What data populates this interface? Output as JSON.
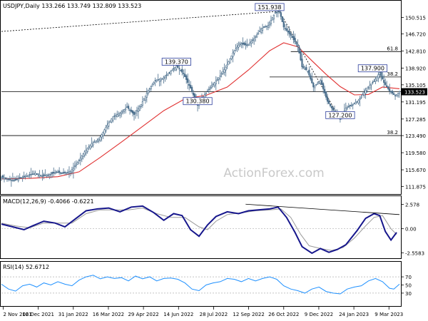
{
  "chart_data": [
    {
      "type": "candlestick",
      "title": "USDJPY,Daily  133.266 133.749 132.809 133.523",
      "yticks": [
        "150.515",
        "146.720",
        "142.810",
        "138.920",
        "135.105",
        "131.195",
        "127.285",
        "123.490",
        "119.580",
        "115.670",
        "111.875"
      ],
      "xticks": [
        "2 Nov 2021",
        "16 Dec 2021",
        "31 Jan 2022",
        "16 Mar 2022",
        "29 Apr 2022",
        "14 Jun 2022",
        "28 Jul 2022",
        "12 Sep 2022",
        "26 Oct 2022",
        "9 Dec 2022",
        "24 Jan 2023",
        "9 Mar 2023"
      ],
      "ylim": [
        110.3,
        154.0
      ],
      "last_price": "133.523",
      "price_path": [
        [
          0,
          114.0
        ],
        [
          4,
          113.6
        ],
        [
          9,
          113.2
        ],
        [
          14,
          113.8
        ],
        [
          19,
          114.4
        ],
        [
          24,
          114.9
        ],
        [
          29,
          114.2
        ],
        [
          34,
          114.6
        ],
        [
          39,
          115.1
        ],
        [
          44,
          114.9
        ],
        [
          49,
          115.3
        ],
        [
          54,
          117.4
        ],
        [
          59,
          119.8
        ],
        [
          64,
          121.7
        ],
        [
          69,
          122.6
        ],
        [
          74,
          125.4
        ],
        [
          79,
          127.8
        ],
        [
          84,
          128.6
        ],
        [
          89,
          130.0
        ],
        [
          94,
          128.3
        ],
        [
          99,
          130.6
        ],
        [
          104,
          133.8
        ],
        [
          109,
          136.1
        ],
        [
          114,
          136.5
        ],
        [
          119,
          137.8
        ],
        [
          124,
          139.4
        ],
        [
          129,
          137.6
        ],
        [
          134,
          134.3
        ],
        [
          139,
          130.4
        ],
        [
          144,
          132.9
        ],
        [
          149,
          134.9
        ],
        [
          154,
          136.7
        ],
        [
          159,
          139.1
        ],
        [
          164,
          142.4
        ],
        [
          169,
          144.6
        ],
        [
          174,
          144.1
        ],
        [
          179,
          145.6
        ],
        [
          184,
          147.9
        ],
        [
          189,
          148.7
        ],
        [
          194,
          151.6
        ],
        [
          197,
          151.9
        ],
        [
          200,
          148.3
        ],
        [
          205,
          146.4
        ],
        [
          210,
          143.9
        ],
        [
          213,
          139.2
        ],
        [
          217,
          138.2
        ],
        [
          221,
          134.6
        ],
        [
          226,
          136.1
        ],
        [
          231,
          131.3
        ],
        [
          236,
          128.8
        ],
        [
          240,
          127.2
        ],
        [
          244,
          129.8
        ],
        [
          249,
          130.6
        ],
        [
          254,
          131.8
        ],
        [
          259,
          134.4
        ],
        [
          264,
          135.9
        ],
        [
          268,
          137.9
        ],
        [
          271,
          135.6
        ],
        [
          275,
          133.7
        ],
        [
          279,
          132.6
        ],
        [
          282,
          133.5
        ]
      ],
      "ma_path": [
        [
          0,
          113.6
        ],
        [
          20,
          113.7
        ],
        [
          40,
          114.1
        ],
        [
          55,
          115.2
        ],
        [
          70,
          118.5
        ],
        [
          85,
          122.0
        ],
        [
          100,
          125.6
        ],
        [
          115,
          129.2
        ],
        [
          130,
          131.9
        ],
        [
          145,
          132.7
        ],
        [
          160,
          134.6
        ],
        [
          175,
          138.5
        ],
        [
          190,
          142.9
        ],
        [
          200,
          144.7
        ],
        [
          210,
          143.8
        ],
        [
          220,
          140.6
        ],
        [
          230,
          137.5
        ],
        [
          240,
          134.7
        ],
        [
          250,
          132.8
        ],
        [
          260,
          132.9
        ],
        [
          270,
          134.6
        ],
        [
          282,
          134.2
        ]
      ],
      "lines": [
        {
          "label": "",
          "from": [
            0,
            147.3
          ],
          "to": [
            197,
            151.9
          ],
          "style": "dotted"
        },
        {
          "label": "",
          "from": [
            197,
            151.9
          ],
          "to": [
            240,
            127.2
          ],
          "style": "dotted"
        },
        {
          "label": "61.8",
          "value": 142.7,
          "from_x": 205
        },
        {
          "label": "38.2",
          "value": 136.9,
          "from_x": 190
        },
        {
          "label": "",
          "value": 133.52,
          "from_x": 0
        },
        {
          "label": "38.2",
          "value": 123.5,
          "from_x": 0
        }
      ],
      "annotations": [
        {
          "text": "151.938",
          "x": 190,
          "y": 151.9
        },
        {
          "text": "139.370",
          "x": 124,
          "y": 139.4
        },
        {
          "text": "130.380",
          "x": 139,
          "y": 130.4
        },
        {
          "text": "137.900",
          "x": 263,
          "y": 137.9
        },
        {
          "text": "127.200",
          "x": 240,
          "y": 127.2
        }
      ],
      "watermark": "ActionForex.com"
    },
    {
      "type": "line",
      "title": "MACD(12,26,9) -0.4066 -0.6221",
      "yticks": [
        "2.578",
        "0.00",
        "-2.5583"
      ],
      "ylim": [
        -2.9,
        3.0
      ],
      "series": [
        {
          "values": [
            [
              0,
              0.5
            ],
            [
              8,
              0.2
            ],
            [
              16,
              -0.1
            ],
            [
              22,
              0.3
            ],
            [
              30,
              0.8
            ],
            [
              38,
              0.6
            ],
            [
              45,
              0.2
            ],
            [
              52,
              1.0
            ],
            [
              60,
              1.9
            ],
            [
              68,
              2.1
            ],
            [
              76,
              2.2
            ],
            [
              84,
              1.8
            ],
            [
              92,
              2.3
            ],
            [
              100,
              2.4
            ],
            [
              108,
              1.7
            ],
            [
              115,
              0.9
            ],
            [
              122,
              1.6
            ],
            [
              128,
              1.4
            ],
            [
              134,
              -0.1
            ],
            [
              140,
              -0.8
            ],
            [
              146,
              0.4
            ],
            [
              152,
              1.3
            ],
            [
              160,
              1.8
            ],
            [
              168,
              1.6
            ],
            [
              175,
              1.9
            ],
            [
              182,
              2.0
            ],
            [
              190,
              2.1
            ],
            [
              196,
              2.3
            ],
            [
              202,
              1.2
            ],
            [
              208,
              -0.4
            ],
            [
              213,
              -1.9
            ],
            [
              220,
              -2.6
            ],
            [
              226,
              -2.1
            ],
            [
              232,
              -2.5
            ],
            [
              238,
              -2.2
            ],
            [
              244,
              -1.7
            ],
            [
              252,
              -0.2
            ],
            [
              258,
              1.1
            ],
            [
              264,
              1.6
            ],
            [
              268,
              1.4
            ],
            [
              272,
              -0.3
            ],
            [
              276,
              -1.2
            ],
            [
              280,
              -0.4
            ]
          ]
        },
        {
          "values": [
            [
              0,
              0.6
            ],
            [
              10,
              0.3
            ],
            [
              20,
              0.1
            ],
            [
              30,
              0.6
            ],
            [
              40,
              0.6
            ],
            [
              50,
              0.6
            ],
            [
              60,
              1.6
            ],
            [
              70,
              2.0
            ],
            [
              80,
              2.0
            ],
            [
              90,
              2.0
            ],
            [
              100,
              2.2
            ],
            [
              110,
              1.6
            ],
            [
              120,
              1.2
            ],
            [
              130,
              1.2
            ],
            [
              140,
              0.2
            ],
            [
              146,
              -0.1
            ],
            [
              152,
              0.8
            ],
            [
              160,
              1.5
            ],
            [
              170,
              1.7
            ],
            [
              180,
              1.9
            ],
            [
              190,
              2.0
            ],
            [
              198,
              2.1
            ],
            [
              205,
              1.2
            ],
            [
              212,
              -0.6
            ],
            [
              218,
              -1.8
            ],
            [
              226,
              -2.1
            ],
            [
              234,
              -2.3
            ],
            [
              242,
              -2.0
            ],
            [
              250,
              -1.0
            ],
            [
              258,
              0.3
            ],
            [
              264,
              1.2
            ],
            [
              270,
              1.4
            ],
            [
              276,
              0.0
            ],
            [
              280,
              -0.6
            ]
          ]
        }
      ],
      "trendline": {
        "from": [
          173,
          2.6
        ],
        "to": [
          282,
          1.5
        ]
      }
    },
    {
      "type": "line",
      "title": "RSI(14) 52.6712",
      "yticks": [
        "70",
        "50",
        "30"
      ],
      "ylim": [
        0,
        100
      ],
      "series": [
        {
          "values": [
            [
              0,
              52
            ],
            [
              5,
              40
            ],
            [
              10,
              35
            ],
            [
              15,
              48
            ],
            [
              20,
              52
            ],
            [
              25,
              45
            ],
            [
              30,
              55
            ],
            [
              35,
              50
            ],
            [
              40,
              58
            ],
            [
              45,
              52
            ],
            [
              50,
              48
            ],
            [
              55,
              62
            ],
            [
              60,
              70
            ],
            [
              65,
              74
            ],
            [
              70,
              65
            ],
            [
              75,
              70
            ],
            [
              80,
              66
            ],
            [
              85,
              68
            ],
            [
              90,
              60
            ],
            [
              95,
              72
            ],
            [
              100,
              65
            ],
            [
              105,
              70
            ],
            [
              110,
              60
            ],
            [
              115,
              66
            ],
            [
              120,
              67
            ],
            [
              125,
              64
            ],
            [
              130,
              55
            ],
            [
              135,
              40
            ],
            [
              140,
              36
            ],
            [
              145,
              50
            ],
            [
              150,
              55
            ],
            [
              155,
              58
            ],
            [
              160,
              66
            ],
            [
              165,
              64
            ],
            [
              170,
              58
            ],
            [
              175,
              66
            ],
            [
              180,
              60
            ],
            [
              185,
              66
            ],
            [
              190,
              70
            ],
            [
              195,
              64
            ],
            [
              200,
              48
            ],
            [
              205,
              40
            ],
            [
              210,
              36
            ],
            [
              215,
              30
            ],
            [
              220,
              40
            ],
            [
              225,
              45
            ],
            [
              230,
              34
            ],
            [
              235,
              30
            ],
            [
              240,
              28
            ],
            [
              245,
              40
            ],
            [
              250,
              45
            ],
            [
              255,
              48
            ],
            [
              260,
              60
            ],
            [
              265,
              66
            ],
            [
              270,
              58
            ],
            [
              275,
              42
            ],
            [
              278,
              40
            ],
            [
              282,
              52
            ]
          ]
        }
      ]
    }
  ]
}
